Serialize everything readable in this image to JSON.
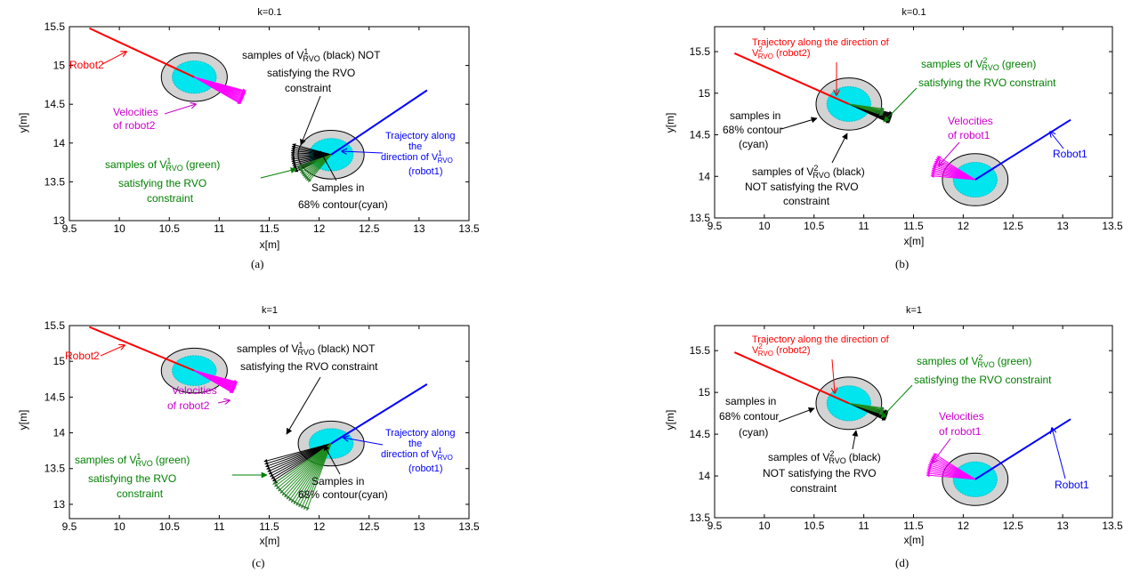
{
  "chart_data": [
    {
      "type": "scatter",
      "panel": "(a)",
      "title": "k=0.1",
      "xlabel": "x[m]",
      "ylabel": "y[m]",
      "xlim": [
        9.5,
        13.5
      ],
      "ylim": [
        13,
        15.5
      ],
      "xticks": [
        "9.5",
        "10",
        "10.5",
        "11",
        "11.5",
        "12",
        "12.5",
        "13",
        "13.5"
      ],
      "yticks": [
        "13",
        "13.5",
        "14",
        "14.5",
        "15",
        "15.5"
      ],
      "robots": [
        {
          "name": "Robot2",
          "center": [
            10.75,
            14.85
          ],
          "outer_radius": 0.33,
          "inner_radius": 0.22
        },
        {
          "name": "robot1",
          "center": [
            12.12,
            13.85
          ],
          "outer_radius": 0.33,
          "inner_radius": 0.22
        }
      ],
      "series": [
        {
          "name": "Robot2",
          "color": "#ff0000",
          "x": [
            9.7,
            10.75
          ],
          "y": [
            15.48,
            14.85
          ]
        },
        {
          "name": "Trajectory along the direction of V1RVO",
          "color": "#0000ff",
          "x": [
            12.12,
            13.08
          ],
          "y": [
            13.85,
            14.68
          ]
        }
      ],
      "annotations": [
        {
          "text": "Robot2",
          "color": "#ff0000"
        },
        {
          "text": "Velocities of robot2",
          "color": "#cc00cc"
        },
        {
          "text": "samples of V1RVO (black) NOT satisfying the RVO constraint",
          "color": "#000000"
        },
        {
          "text": "Trajectory along the direction of V1RVO (robot1)",
          "color": "#0000ff"
        },
        {
          "text": "samples of V1RVO (green) satisfying the RVO constraint",
          "color": "#008000"
        },
        {
          "text": "Samples in 68% contour(cyan)",
          "color": "#000000"
        }
      ]
    },
    {
      "type": "scatter",
      "panel": "(b)",
      "title": "k=0.1",
      "xlabel": "x[m]",
      "ylabel": "y[m]",
      "xlim": [
        9.5,
        13.5
      ],
      "ylim": [
        13.5,
        15.8
      ],
      "xticks": [
        "9.5",
        "10",
        "10.5",
        "11",
        "11.5",
        "12",
        "12.5",
        "13",
        "13.5"
      ],
      "yticks": [
        "13.5",
        "14",
        "14.5",
        "15",
        "15.5"
      ],
      "robots": [
        {
          "name": "robot2",
          "center": [
            10.85,
            14.87
          ],
          "outer_radius": 0.33,
          "inner_radius": 0.22
        },
        {
          "name": "Robot1",
          "center": [
            12.12,
            13.96
          ],
          "outer_radius": 0.33,
          "inner_radius": 0.22
        }
      ],
      "series": [
        {
          "name": "Trajectory along the direction of V2RVO (robot2)",
          "color": "#ff0000",
          "x": [
            9.7,
            10.85
          ],
          "y": [
            15.48,
            14.87
          ]
        },
        {
          "name": "Robot1",
          "color": "#0000ff",
          "x": [
            12.12,
            13.08
          ],
          "y": [
            13.96,
            14.68
          ]
        }
      ],
      "annotations": [
        {
          "text": "Trajectory along the direction of V2RVO (robot2)",
          "color": "#ff0000"
        },
        {
          "text": "samples of V2RVO (green) satisfying the RVO constraint",
          "color": "#008000"
        },
        {
          "text": "samples in 68% contour (cyan)",
          "color": "#000000"
        },
        {
          "text": "Velocities of robot1",
          "color": "#cc00cc"
        },
        {
          "text": "samples of V2RVO (black) NOT satisfying the RVO constraint",
          "color": "#000000"
        },
        {
          "text": "Robot1",
          "color": "#0000ff"
        }
      ]
    },
    {
      "type": "scatter",
      "panel": "(c)",
      "title": "k=1",
      "xlabel": "x[m]",
      "ylabel": "y[m]",
      "xlim": [
        9.5,
        13.5
      ],
      "ylim": [
        12.8,
        15.5
      ],
      "xticks": [
        "9.5",
        "10",
        "10.5",
        "11",
        "11.5",
        "12",
        "12.5",
        "13",
        "13.5"
      ],
      "yticks": [
        "13",
        "13.5",
        "14",
        "14.5",
        "15",
        "15.5"
      ],
      "robots": [
        {
          "name": "Robot2",
          "center": [
            10.75,
            14.87
          ],
          "outer_radius": 0.33,
          "inner_radius": 0.22
        },
        {
          "name": "robot1",
          "center": [
            12.12,
            13.85
          ],
          "outer_radius": 0.33,
          "inner_radius": 0.22
        }
      ],
      "series": [
        {
          "name": "Robot2",
          "color": "#ff0000",
          "x": [
            9.7,
            10.75
          ],
          "y": [
            15.48,
            14.87
          ]
        },
        {
          "name": "Trajectory along the direction of V1RVO",
          "color": "#0000ff",
          "x": [
            12.12,
            13.08
          ],
          "y": [
            13.85,
            14.68
          ]
        }
      ],
      "annotations": [
        {
          "text": "Robot2",
          "color": "#ff0000"
        },
        {
          "text": "Velocities of robot2",
          "color": "#cc00cc"
        },
        {
          "text": "samples of V1RVO (black) NOT satisfying the RVO constraint",
          "color": "#000000"
        },
        {
          "text": "Trajectory along the direction of V1RVO (robot1)",
          "color": "#0000ff"
        },
        {
          "text": "samples of V1RVO (green) satisfying the RVO constraint",
          "color": "#008000"
        },
        {
          "text": "Samples in 68% contour(cyan)",
          "color": "#000000"
        }
      ]
    },
    {
      "type": "scatter",
      "panel": "(d)",
      "title": "k=1",
      "xlabel": "x[m]",
      "ylabel": "y[m]",
      "xlim": [
        9.5,
        13.5
      ],
      "ylim": [
        13.5,
        15.8
      ],
      "xticks": [
        "9.5",
        "10",
        "10.5",
        "11",
        "11.5",
        "12",
        "12.5",
        "13",
        "13.5"
      ],
      "yticks": [
        "13.5",
        "14",
        "14.5",
        "15",
        "15.5"
      ],
      "robots": [
        {
          "name": "robot2",
          "center": [
            10.85,
            14.87
          ],
          "outer_radius": 0.33,
          "inner_radius": 0.22
        },
        {
          "name": "Robot1",
          "center": [
            12.12,
            13.96
          ],
          "outer_radius": 0.33,
          "inner_radius": 0.22
        }
      ],
      "series": [
        {
          "name": "Trajectory along the direction of V2RVO (robot2)",
          "color": "#ff0000",
          "x": [
            9.7,
            10.85
          ],
          "y": [
            15.48,
            14.87
          ]
        },
        {
          "name": "Robot1",
          "color": "#0000ff",
          "x": [
            12.12,
            13.08
          ],
          "y": [
            13.96,
            14.68
          ]
        }
      ],
      "annotations": [
        {
          "text": "Trajectory along the direction of V2RVO (robot2)",
          "color": "#ff0000"
        },
        {
          "text": "samples of V2RVO (green) satisfying the RVO constraint",
          "color": "#008000"
        },
        {
          "text": "samples in 68% contour (cyan)",
          "color": "#000000"
        },
        {
          "text": "Velocities of robot1",
          "color": "#cc00cc"
        },
        {
          "text": "samples of V2RVO (black) NOT satisfying the RVO constraint",
          "color": "#000000"
        },
        {
          "text": "Robot1",
          "color": "#0000ff"
        }
      ]
    }
  ],
  "text": {
    "a": {
      "title": "k=0.1",
      "xlabel": "x[m]",
      "ylabel": "y[m]",
      "caption": "(a)",
      "robot2": "Robot2",
      "vel1": "Velocities",
      "vel2": "of robot2",
      "blk1a": "samples of V",
      "blk1b": "1",
      "blk1c": "RVO",
      "blk1d": "(black) NOT",
      "blk2": "satisfying the RVO",
      "blk3": "constraint",
      "traj1": "Trajectory along",
      "traj2": "the",
      "traj3a": "direction of V",
      "traj3b": "1",
      "traj3c": "RVO",
      "traj4": "(robot1)",
      "grn1a": "samples of V",
      "grn1b": "1",
      "grn1c": "RVO",
      "grn1d": "(green)",
      "grn2": "satisfying the RVO",
      "grn3": "constraint",
      "cyan1": "Samples in",
      "cyan2": "68% contour(cyan)"
    },
    "b": {
      "title": "k=0.1",
      "xlabel": "x[m]",
      "ylabel": "y[m]",
      "caption": "(b)",
      "traj1": "Trajectory along the direction of",
      "traj2a": "V",
      "traj2b": "2",
      "traj2c": "RVO",
      "traj2d": "(robot2)",
      "grn1a": "samples of V",
      "grn1b": "2",
      "grn1c": "RVO",
      "grn1d": "(green)",
      "grn2": "satisfying the RVO constraint",
      "cyan1": "samples in",
      "cyan2": "68% contour",
      "cyan3": "(cyan)",
      "vel1": "Velocities",
      "vel2": "of robot1",
      "blk1a": "samples of V",
      "blk1b": "2",
      "blk1c": "RVO",
      "blk1d": "(black)",
      "blk2": "NOT satisfying the RVO",
      "blk3": "constraint",
      "robot1": "Robot1"
    },
    "c": {
      "title": "k=1",
      "xlabel": "x[m]",
      "ylabel": "y[m]",
      "caption": "(c)",
      "robot2": "Robot2",
      "vel1": "Velocities",
      "vel2": "of robot2",
      "blk1a": "samples of V",
      "blk1b": "1",
      "blk1c": "RVO",
      "blk1d": "(black) NOT",
      "blk2": "satisfying the RVO constraint",
      "traj1": "Trajectory along",
      "traj2": "the",
      "traj3a": "direction of V",
      "traj3b": "1",
      "traj3c": "RVO",
      "traj4": "(robot1)",
      "grn1a": "samples of V",
      "grn1b": "1",
      "grn1c": "RVO",
      "grn1d": "(green)",
      "grn2": "satisfying the RVO",
      "grn3": "constraint",
      "cyan1": "Samples in",
      "cyan2": "68% contour(cyan)"
    },
    "d": {
      "title": "k=1",
      "xlabel": "x[m]",
      "ylabel": "y[m]",
      "caption": "(d)",
      "traj1": "Trajectory along the direction of",
      "traj2a": "V",
      "traj2b": "2",
      "traj2c": "RVO",
      "traj2d": "(robot2)",
      "grn1a": "samples of V",
      "grn1b": "2",
      "grn1c": "RVO",
      "grn1d": "(green)",
      "grn2": "satisfying the RVO constraint",
      "cyan1": "samples in",
      "cyan2": "68% contour",
      "cyan3": "(cyan)",
      "vel1": "Velocities",
      "vel2": "of robot1",
      "blk1a": "samples of V",
      "blk1b": "2",
      "blk1c": "RVO",
      "blk1d": "(black)",
      "blk2": "NOT satisfying the RVO",
      "blk3": "constraint",
      "robot1": "Robot1"
    }
  },
  "colors": {
    "robot2_traj": "#ff0000",
    "robot1_traj": "#0000ff",
    "velocities": "#ff00ff",
    "green_samples": "#1e8c1e",
    "black_samples": "#000000",
    "contour_cyan": "#00e5ee",
    "safety_ring": "#d3d3d3"
  }
}
